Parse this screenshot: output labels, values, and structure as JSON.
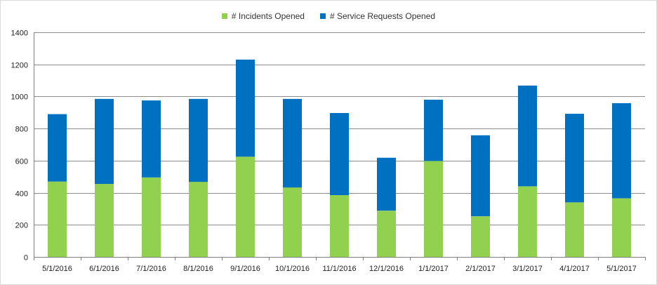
{
  "chart_data": {
    "type": "bar",
    "stacked": true,
    "categories": [
      "5/1/2016",
      "6/1/2016",
      "7/1/2016",
      "8/1/2016",
      "9/1/2016",
      "10/1/2016",
      "11/1/2016",
      "12/1/2016",
      "1/1/2017",
      "2/1/2017",
      "3/1/2017",
      "4/1/2017",
      "5/1/2017"
    ],
    "series": [
      {
        "name": "# Incidents Opened",
        "color": "#92d050",
        "values": [
          470,
          455,
          495,
          468,
          625,
          433,
          385,
          288,
          598,
          253,
          440,
          340,
          365
        ]
      },
      {
        "name": "# Service Requests Opened",
        "color": "#0070c0",
        "values": [
          420,
          530,
          480,
          517,
          605,
          552,
          512,
          330,
          382,
          505,
          628,
          552,
          593
        ]
      }
    ],
    "title": "",
    "xlabel": "",
    "ylabel": "",
    "ylim": [
      0,
      1400
    ],
    "yticks": [
      0,
      200,
      400,
      600,
      800,
      1000,
      1200,
      1400
    ],
    "grid": true,
    "legend_position": "top-center"
  }
}
